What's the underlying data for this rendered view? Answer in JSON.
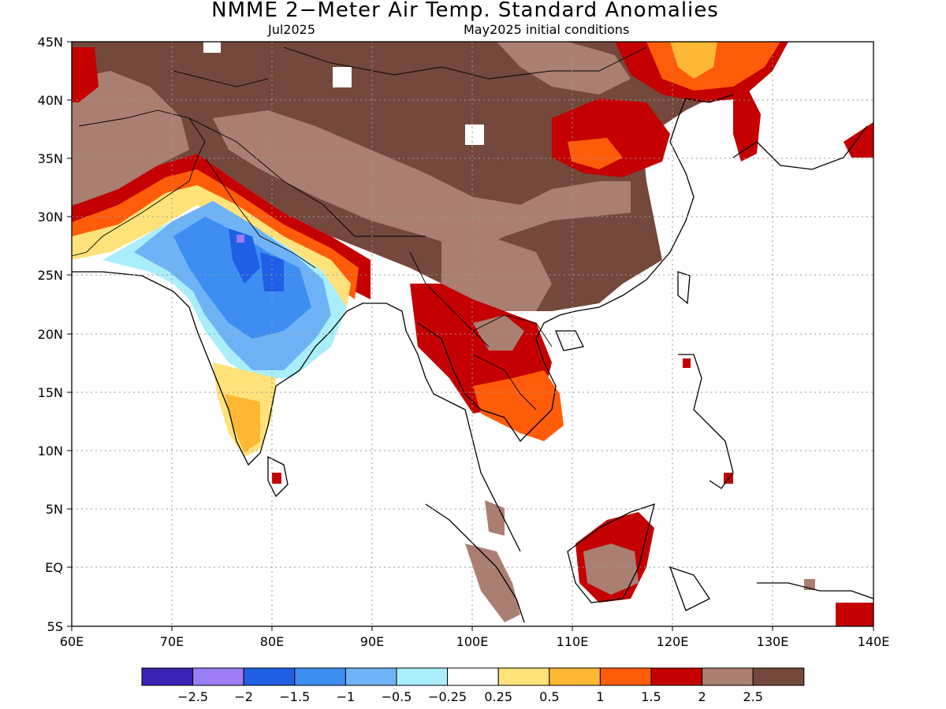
{
  "title": "NMME 2−Meter Air Temp. Standard Anomalies",
  "subtitle_left": "Jul2025",
  "subtitle_right": "May2025 initial conditions",
  "map": {
    "lon_range": [
      60,
      140
    ],
    "lat_range": [
      -5,
      45
    ],
    "lon_ticks": [
      "60E",
      "70E",
      "80E",
      "90E",
      "100E",
      "110E",
      "120E",
      "130E",
      "140E"
    ],
    "lat_ticks": [
      "45N",
      "40N",
      "35N",
      "30N",
      "25N",
      "20N",
      "15N",
      "10N",
      "5N",
      "EQ",
      "5S"
    ]
  },
  "colorbar": {
    "colors": [
      "#3a22b5",
      "#9b7df5",
      "#1f5fe6",
      "#3c8ef2",
      "#6fb3f7",
      "#aaeefb",
      "#ffffff",
      "#ffe37a",
      "#ffb833",
      "#ff5c0a",
      "#c40000",
      "#ab7e72",
      "#74483c"
    ],
    "labels": [
      "−2.5",
      "−2",
      "−1.5",
      "−1",
      "−0.5",
      "−0.25",
      "0.25",
      "0.5",
      "1",
      "1.5",
      "2",
      "2.5"
    ]
  }
}
